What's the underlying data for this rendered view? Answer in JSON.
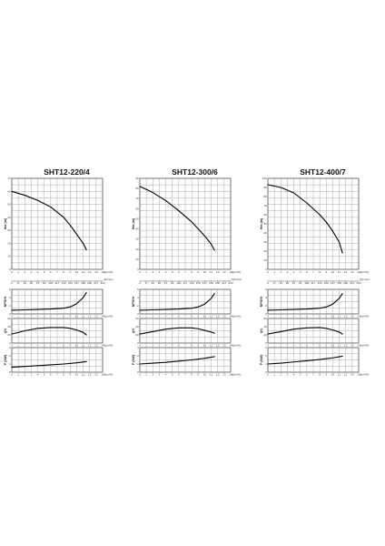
{
  "charts": [
    {
      "title": "SHT12-220/4",
      "h_max_label": "Hm (m)",
      "x_ticks": [
        "0",
        "1",
        "2",
        "3",
        "4",
        "5",
        "6",
        "7",
        "8",
        "9",
        "10",
        "11",
        "12",
        "13",
        "14"
      ],
      "x_unit": "Q(m³/h)",
      "lmin_ticks": [
        "0",
        "17",
        "33",
        "50",
        "67",
        "83",
        "100",
        "117",
        "133",
        "150",
        "167",
        "183",
        "200",
        "217",
        "233"
      ],
      "lmin_unit": "Q(l/min)",
      "h_ticks": [
        "0",
        "10",
        "20",
        "30",
        "40",
        "50",
        "60",
        "70"
      ],
      "npsh_label": "NPSHr",
      "npsh_ticks": [
        "0",
        "2",
        "4",
        "6"
      ],
      "eff_label": "η%",
      "eff_ticks": [
        "0",
        "20",
        "40",
        "60"
      ],
      "power_label": "P (kW)",
      "power_ticks": [
        "0",
        "1",
        "2",
        "3"
      ]
    },
    {
      "title": "SHT12-300/6",
      "h_max_label": "Hm (m)",
      "x_ticks": [
        "0",
        "1",
        "2",
        "3",
        "4",
        "5",
        "6",
        "7",
        "8",
        "9",
        "10",
        "11",
        "12",
        "13",
        "14"
      ],
      "x_unit": "Q(m³/h)",
      "lmin_ticks": [
        "0",
        "17",
        "33",
        "50",
        "67",
        "83",
        "100",
        "117",
        "133",
        "150",
        "167",
        "183",
        "200",
        "217",
        "233"
      ],
      "lmin_unit": "Q(l/min)",
      "h_ticks": [
        "0",
        "10",
        "20",
        "30",
        "40",
        "50",
        "60",
        "70",
        "80",
        "90"
      ],
      "npsh_label": "NPSHr",
      "npsh_ticks": [
        "0",
        "2",
        "4",
        "6"
      ],
      "eff_label": "η%",
      "eff_ticks": [
        "0",
        "20",
        "40",
        "60"
      ],
      "power_label": "P (kW)",
      "power_ticks": [
        "0",
        "1",
        "2",
        "3"
      ]
    },
    {
      "title": "SHT12-400/7",
      "h_max_label": "Hm (m)",
      "x_ticks": [
        "0",
        "1",
        "2",
        "3",
        "4",
        "5",
        "6",
        "7",
        "8",
        "9",
        "10",
        "11",
        "12",
        "13",
        "14"
      ],
      "x_unit": "Q(m³/h)",
      "lmin_ticks": [
        "0",
        "17",
        "33",
        "50",
        "67",
        "83",
        "100",
        "117",
        "133",
        "150",
        "167",
        "183",
        "200",
        "217",
        "233"
      ],
      "lmin_unit": "Q(l/min)",
      "h_ticks": [
        "0",
        "10",
        "20",
        "30",
        "40",
        "50",
        "60",
        "70",
        "80",
        "90",
        "100"
      ],
      "npsh_label": "NPSHr",
      "npsh_ticks": [
        "0",
        "2",
        "4",
        "6"
      ],
      "eff_label": "η%",
      "eff_ticks": [
        "0",
        "20",
        "40",
        "60"
      ],
      "power_label": "P (kW)",
      "power_ticks": [
        "0",
        "1",
        "2",
        "3"
      ]
    }
  ],
  "chart_data": [
    {
      "type": "line",
      "title": "SHT12-220/4",
      "xlim": [
        0,
        14
      ],
      "series": [
        {
          "key": "head",
          "ylim": [
            0,
            70
          ],
          "x": [
            0,
            2,
            4,
            6,
            8,
            9,
            10,
            11,
            11.5
          ],
          "y": [
            60,
            57,
            53,
            48,
            40,
            34,
            27,
            20,
            15
          ]
        },
        {
          "key": "npsh",
          "ylim": [
            0,
            6
          ],
          "x": [
            0,
            2,
            4,
            6,
            8,
            9,
            10,
            11,
            11.5
          ],
          "y": [
            0.9,
            1.0,
            1.1,
            1.2,
            1.4,
            1.7,
            2.5,
            4.0,
            5.2
          ]
        },
        {
          "key": "eff",
          "ylim": [
            0,
            60
          ],
          "x": [
            0,
            2,
            4,
            6,
            8,
            9,
            10,
            11,
            11.5
          ],
          "y": [
            22,
            30,
            36,
            38,
            38,
            36,
            32,
            26,
            20
          ]
        },
        {
          "key": "power",
          "ylim": [
            0,
            3
          ],
          "x": [
            0,
            2,
            4,
            6,
            8,
            10,
            11.5
          ],
          "y": [
            0.6,
            0.7,
            0.8,
            0.9,
            1.0,
            1.15,
            1.3
          ]
        }
      ]
    },
    {
      "type": "line",
      "title": "SHT12-300/6",
      "xlim": [
        0,
        14
      ],
      "series": [
        {
          "key": "head",
          "ylim": [
            0,
            90
          ],
          "x": [
            0,
            2,
            4,
            6,
            8,
            9,
            10,
            11,
            11.5
          ],
          "y": [
            82,
            76,
            68,
            58,
            47,
            40,
            33,
            25,
            19
          ]
        },
        {
          "key": "npsh",
          "ylim": [
            0,
            6
          ],
          "x": [
            0,
            2,
            4,
            6,
            8,
            9,
            10,
            11,
            11.5
          ],
          "y": [
            0.9,
            1.0,
            1.1,
            1.2,
            1.4,
            1.7,
            2.4,
            3.8,
            5.0
          ]
        },
        {
          "key": "eff",
          "ylim": [
            0,
            60
          ],
          "x": [
            0,
            2,
            4,
            6,
            8,
            9,
            10,
            11,
            11.5
          ],
          "y": [
            22,
            28,
            34,
            37,
            37,
            35,
            31,
            27,
            24
          ]
        },
        {
          "key": "power",
          "ylim": [
            0,
            3
          ],
          "x": [
            0,
            2,
            4,
            6,
            8,
            10,
            11.5
          ],
          "y": [
            1.0,
            1.1,
            1.2,
            1.35,
            1.5,
            1.7,
            1.9
          ]
        }
      ]
    },
    {
      "type": "line",
      "title": "SHT12-400/7",
      "xlim": [
        0,
        14
      ],
      "series": [
        {
          "key": "head",
          "ylim": [
            0,
            100
          ],
          "x": [
            0,
            2,
            4,
            6,
            8,
            9,
            10,
            11,
            11.5
          ],
          "y": [
            93,
            90,
            84,
            73,
            60,
            52,
            42,
            30,
            18
          ]
        },
        {
          "key": "npsh",
          "ylim": [
            0,
            6
          ],
          "x": [
            0,
            2,
            4,
            6,
            8,
            9,
            10,
            11,
            11.5
          ],
          "y": [
            0.9,
            1.0,
            1.1,
            1.2,
            1.4,
            1.7,
            2.4,
            3.8,
            5.0
          ]
        },
        {
          "key": "eff",
          "ylim": [
            0,
            60
          ],
          "x": [
            0,
            2,
            4,
            6,
            8,
            9,
            10,
            11,
            11.5
          ],
          "y": [
            22,
            28,
            34,
            37,
            38,
            36,
            32,
            27,
            22
          ]
        },
        {
          "key": "power",
          "ylim": [
            0,
            3
          ],
          "x": [
            0,
            2,
            4,
            6,
            8,
            10,
            11.5
          ],
          "y": [
            1.0,
            1.1,
            1.25,
            1.4,
            1.55,
            1.75,
            1.95
          ]
        }
      ]
    }
  ]
}
